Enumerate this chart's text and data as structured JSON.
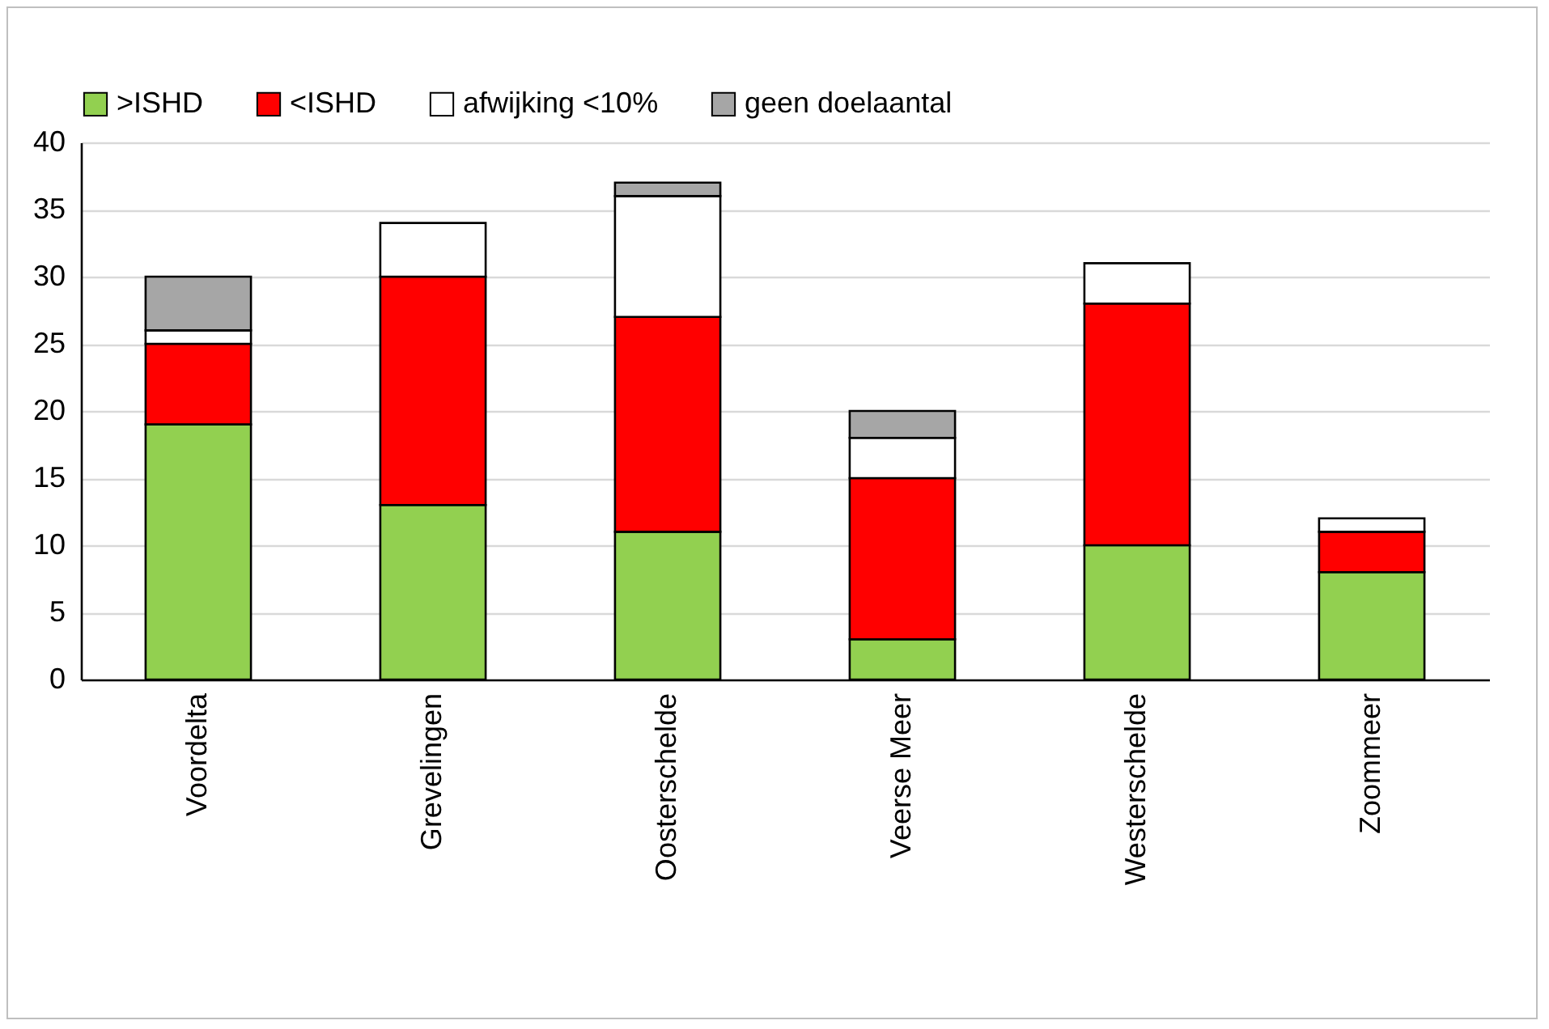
{
  "chart_data": {
    "type": "bar",
    "stacked": true,
    "categories": [
      "Voordelta",
      "Grevelingen",
      "Oosterschelde",
      "Veerse Meer",
      "Westerschelde",
      "Zoommeer"
    ],
    "series": [
      {
        "name": ">ISHD",
        "color": "#92d050",
        "values": [
          19,
          13,
          11,
          3,
          10,
          8
        ]
      },
      {
        "name": "<ISHD",
        "color": "#ff0000",
        "values": [
          6,
          17,
          16,
          12,
          18,
          3
        ]
      },
      {
        "name": "afwijking <10%",
        "color": "#ffffff",
        "values": [
          1,
          4,
          9,
          3,
          3,
          1
        ]
      },
      {
        "name": "geen doelaantal",
        "color": "#a6a6a6",
        "values": [
          4,
          0,
          1,
          2,
          0,
          0
        ]
      }
    ],
    "ylim": [
      0,
      40
    ],
    "yticks": [
      0,
      5,
      10,
      15,
      20,
      25,
      30,
      35,
      40
    ],
    "grid": "y",
    "legend": "top"
  }
}
